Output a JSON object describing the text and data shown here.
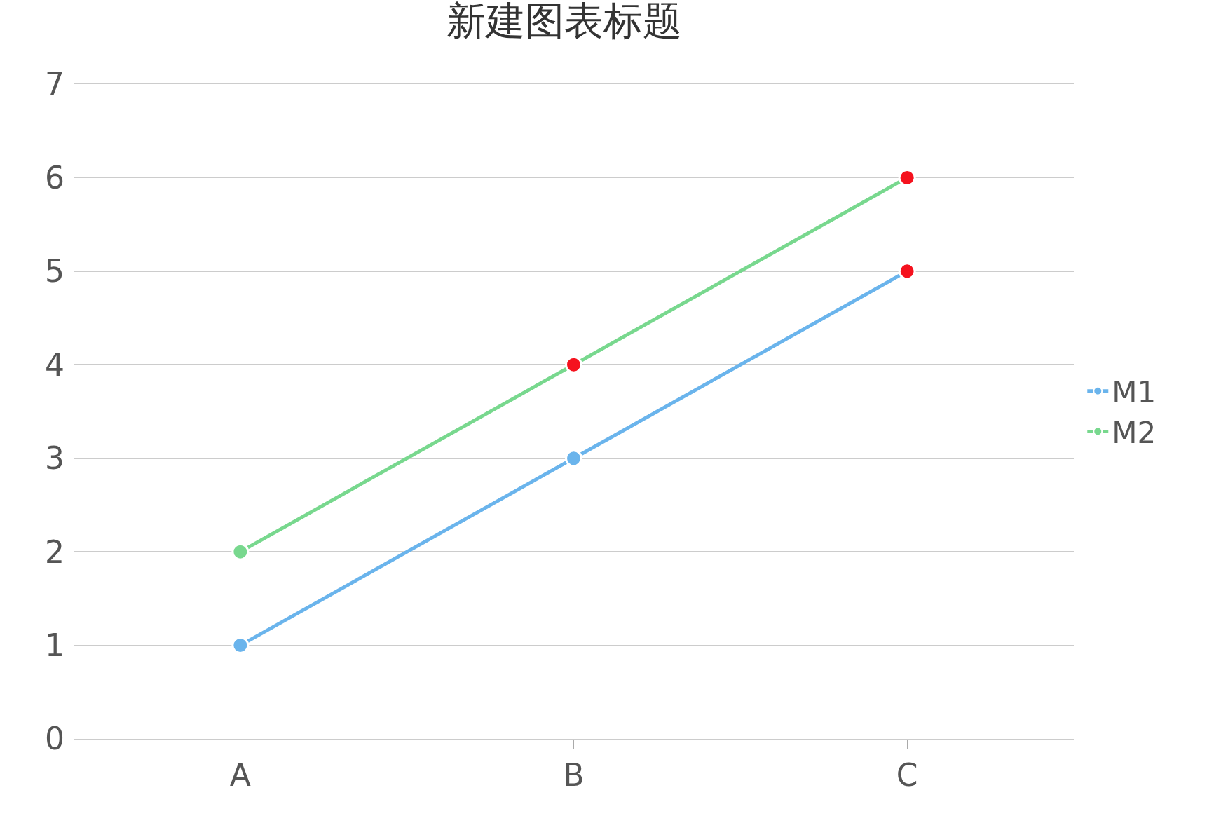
{
  "chart_data": {
    "type": "line",
    "title": "新建图表标题",
    "categories": [
      "A",
      "B",
      "C"
    ],
    "series": [
      {
        "name": "M1",
        "color": "#6ab4ec",
        "colors": [
          "#6ab4ec",
          "#6ab4ec",
          "#f5121e"
        ],
        "values": [
          1,
          3,
          5
        ]
      },
      {
        "name": "M2",
        "color": "#78d88e",
        "colors": [
          "#78d88e",
          "#f5121e",
          "#f5121e"
        ],
        "values": [
          2,
          4,
          6
        ]
      }
    ],
    "ylim": [
      0,
      7
    ],
    "yticks": [
      0,
      1,
      2,
      3,
      4,
      5,
      6,
      7
    ],
    "grid": "y",
    "legend": "right",
    "marker": "circle",
    "line_style": "solid"
  }
}
